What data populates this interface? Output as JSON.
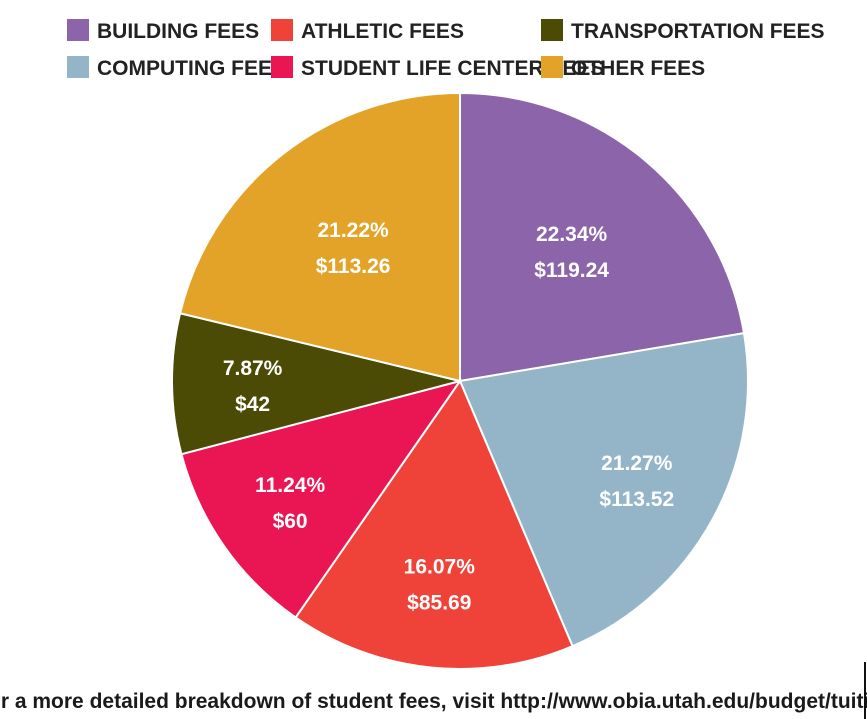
{
  "chart_data": {
    "type": "pie",
    "categories": [
      "BUILDING FEES",
      "COMPUTING FEES",
      "ATHLETIC FEES",
      "STUDENT LIFE CENTER  FEES",
      "TRANSPORTATION FEES",
      "OTHER FEES"
    ],
    "values": [
      119.24,
      113.52,
      85.69,
      60,
      42,
      113.26
    ],
    "percent_labels": [
      "22.34%",
      "21.27%",
      "16.07%",
      "11.24%",
      "7.87%",
      "21.22%"
    ],
    "value_labels": [
      "$119.24",
      "$113.52",
      "$85.69",
      "$60",
      "$42",
      "$113.26"
    ],
    "colors": [
      "#8b64aa",
      "#93b5c7",
      "#ef4238",
      "#ea1654",
      "#4b4b05",
      "#e2a328"
    ],
    "legend_placement": "top",
    "legend": [
      {
        "label": "BUILDING FEES",
        "color": "#8b64aa"
      },
      {
        "label": "ATHLETIC FEES",
        "color": "#ef4238"
      },
      {
        "label": "TRANSPORTATION FEES",
        "color": "#4b4b05"
      },
      {
        "label": "COMPUTING FEES",
        "color": "#93b5c7"
      },
      {
        "label": "STUDENT LIFE CENTER  FEES",
        "color": "#ea1654"
      },
      {
        "label": "OTHER FEES",
        "color": "#e2a328"
      }
    ]
  },
  "footer": {
    "text": "For a more detailed breakdown of student fees, visit http://www.obia.utah.edu/budget/tuition/"
  }
}
